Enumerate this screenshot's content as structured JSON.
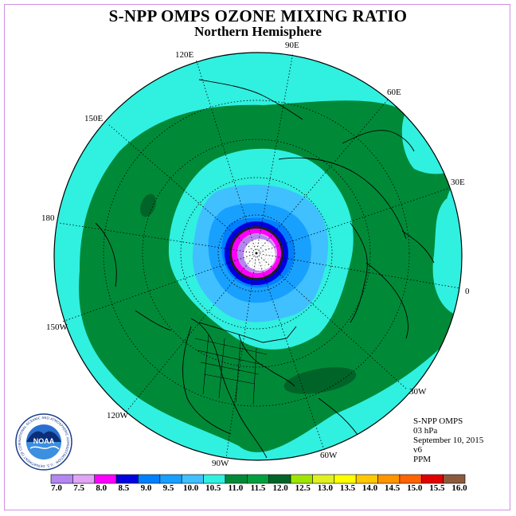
{
  "header": {
    "title": "S-NPP OMPS OZONE MIXING RATIO",
    "subtitle": "Northern Hemisphere"
  },
  "longitude_labels": {
    "e90": "90E",
    "e120": "120E",
    "e60": "60E",
    "e150": "150E",
    "e30": "30E",
    "d180": "180",
    "d0": "0",
    "w150": "150W",
    "w30": "30W",
    "w120": "120W",
    "w60": "60W",
    "w90": "90W"
  },
  "info": {
    "instrument": "S-NPP OMPS",
    "level": "03 hPa",
    "date": "September 10, 2015",
    "version": "v6",
    "units": "PPM"
  },
  "legend": {
    "ticks": [
      "7.0",
      "7.5",
      "8.0",
      "8.5",
      "9.0",
      "9.5",
      "10.0",
      "10.5",
      "11.0",
      "11.5",
      "12.0",
      "12.5",
      "13.0",
      "13.5",
      "14.0",
      "14.5",
      "15.0",
      "15.5",
      "16.0"
    ],
    "colors": [
      "#b487f0",
      "#e0a5f5",
      "#ff00ff",
      "#0000e0",
      "#0080ff",
      "#18a0ff",
      "#40c0ff",
      "#30f0e0",
      "#008a38",
      "#00a040",
      "#006428",
      "#9ee600",
      "#e0f020",
      "#ffff00",
      "#ffc800",
      "#ff9600",
      "#ff6400",
      "#e00000",
      "#8b5a3c"
    ]
  },
  "logo": {
    "text": "NOAA",
    "ring_text": "NATIONAL OCEANIC AND ATMOSPHERIC ADMINISTRATION · U.S. DEPARTMENT OF COMMERCE"
  },
  "colors": {
    "outer_band": "#30f0e0",
    "mid_band": "#008a38",
    "dark_patch": "#006428",
    "inner_band": "#40c0ff",
    "core_band": "#0080ff",
    "blue_ring": "#0000e0",
    "magenta_ring": "#ff00ff",
    "lilac_ring": "#e0a5f5"
  }
}
